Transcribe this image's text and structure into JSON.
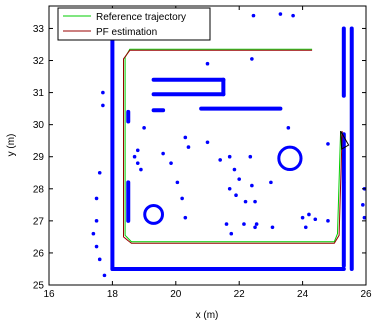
{
  "chart_data": {
    "type": "scatter",
    "title": "",
    "xlabel": "x (m)",
    "ylabel": "y (m)",
    "xlim": [
      16,
      26
    ],
    "ylim": [
      25,
      33.7
    ],
    "x_ticks": [
      16,
      18,
      20,
      22,
      24,
      26
    ],
    "y_ticks": [
      25,
      26,
      27,
      28,
      29,
      30,
      31,
      32,
      33
    ],
    "grid": false,
    "legend_position": "top-left",
    "colors": {
      "map": "#0000ff",
      "reference": "#00cc00",
      "estimate": "#990000",
      "arrow": "#000000"
    },
    "legend": [
      {
        "name": "Reference trajectory",
        "color": "#00cc00"
      },
      {
        "name": "PF estimation",
        "color": "#990000"
      }
    ],
    "series": [
      {
        "name": "Reference trajectory",
        "kind": "line",
        "x": [
          24.3,
          18.55,
          18.4,
          18.4,
          18.6,
          25.0,
          25.1,
          25.2
        ],
        "y": [
          32.35,
          32.35,
          32.1,
          26.55,
          26.35,
          26.35,
          26.6,
          29.8
        ]
      },
      {
        "name": "PF estimation",
        "kind": "line",
        "x": [
          24.3,
          18.55,
          18.35,
          18.35,
          18.6,
          25.0,
          25.15,
          25.25
        ],
        "y": [
          32.32,
          32.32,
          32.05,
          26.5,
          26.3,
          26.3,
          26.55,
          29.8
        ]
      },
      {
        "name": "map-outer-walls",
        "kind": "segments",
        "segments": [
          [
            [
              18.0,
              32.9
            ],
            [
              18.0,
              25.5
            ]
          ],
          [
            [
              18.0,
              25.5
            ],
            [
              25.3,
              25.5
            ]
          ],
          [
            [
              25.55,
              33.0
            ],
            [
              25.55,
              25.5
            ]
          ],
          [
            [
              18.0,
              32.9
            ],
            [
              18.3,
              32.9
            ]
          ],
          [
            [
              25.3,
              25.6
            ],
            [
              25.3,
              29.7
            ]
          ],
          [
            [
              25.3,
              30.9
            ],
            [
              25.3,
              33.0
            ]
          ]
        ]
      },
      {
        "name": "map-inner-structures",
        "kind": "segments",
        "segments": [
          [
            [
              19.3,
              30.95
            ],
            [
              21.5,
              30.95
            ]
          ],
          [
            [
              19.3,
              31.4
            ],
            [
              21.5,
              31.4
            ]
          ],
          [
            [
              21.5,
              30.95
            ],
            [
              21.5,
              31.4
            ]
          ],
          [
            [
              20.8,
              30.5
            ],
            [
              23.3,
              30.5
            ]
          ],
          [
            [
              19.3,
              30.45
            ],
            [
              19.6,
              30.45
            ]
          ],
          [
            [
              18.5,
              30.4
            ],
            [
              18.5,
              30.1
            ]
          ],
          [
            [
              18.5,
              28.2
            ],
            [
              18.5,
              27.0
            ]
          ]
        ]
      },
      {
        "name": "map-rings",
        "kind": "circles",
        "circles": [
          {
            "cx": 19.3,
            "cy": 27.2,
            "r": 0.28
          },
          {
            "cx": 23.6,
            "cy": 28.95,
            "r": 0.35
          }
        ]
      },
      {
        "name": "map-points",
        "kind": "points",
        "x": [
          17.7,
          17.7,
          17.6,
          17.5,
          17.5,
          17.4,
          17.5,
          17.6,
          17.75,
          19.6,
          19.85,
          20.05,
          20.2,
          20.3,
          21.4,
          21.7,
          21.85,
          22.0,
          21.9,
          22.2,
          22.35,
          22.4,
          22.15,
          21.6,
          21.75,
          22.5,
          22.55,
          22.4,
          24.0,
          24.1,
          24.2,
          24.4,
          24.8,
          22.45,
          21.0,
          19.0,
          18.7,
          18.9,
          20.3,
          20.4,
          21.0,
          23.0,
          23.05,
          23.55,
          25.95,
          25.9,
          25.95,
          24.8,
          25.3,
          22.5,
          21.7,
          18.8,
          18.8,
          23.3,
          23.7
        ],
        "y": [
          31.0,
          30.6,
          28.5,
          27.7,
          27.0,
          26.6,
          26.2,
          25.8,
          25.3,
          29.1,
          28.8,
          28.2,
          27.7,
          27.1,
          28.9,
          29.0,
          28.6,
          28.3,
          27.8,
          27.6,
          29.0,
          28.1,
          26.9,
          26.9,
          26.6,
          26.8,
          26.9,
          32.05,
          27.1,
          26.8,
          27.2,
          27.05,
          29.4,
          33.4,
          31.9,
          29.9,
          29.0,
          28.6,
          29.6,
          29.3,
          29.45,
          28.2,
          26.8,
          29.9,
          28.0,
          27.5,
          27.1,
          27.0,
          28.2,
          27.6,
          28.0,
          29.2,
          28.8,
          33.45,
          33.4
        ]
      }
    ]
  }
}
